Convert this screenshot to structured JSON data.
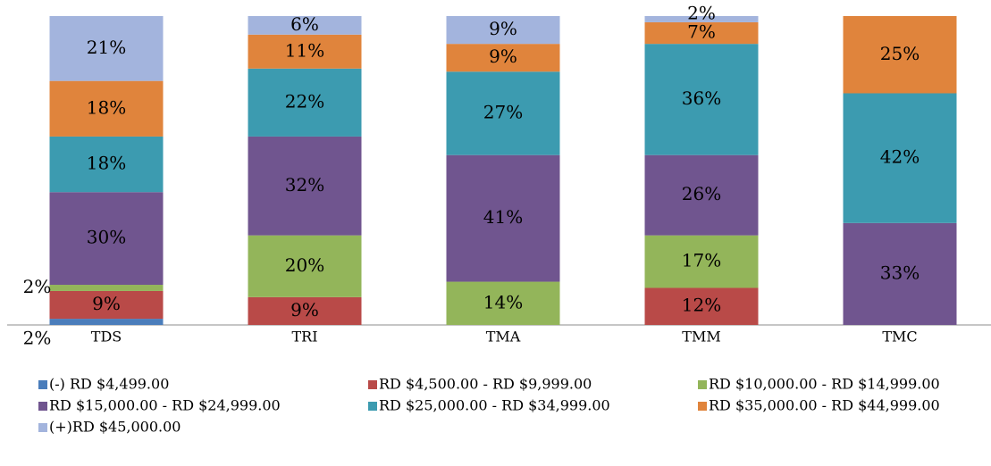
{
  "chart_data": {
    "type": "stacked_bar",
    "categories": [
      "TDS",
      "TRI",
      "TMA",
      "TMM",
      "TMC"
    ],
    "series": [
      {
        "name": "(-) RD $4,499.00",
        "color": "#4a7dbb",
        "values": [
          2,
          null,
          null,
          null,
          null
        ],
        "value_labels": [
          "2%",
          null,
          null,
          null,
          null
        ]
      },
      {
        "name": "RD $4,500.00 - RD $9,999.00",
        "color": "#b94a48",
        "values": [
          9,
          9,
          null,
          12,
          null
        ],
        "value_labels": [
          "9%",
          "9%",
          null,
          "12%",
          null
        ]
      },
      {
        "name": "RD $10,000.00 - RD $14,999.00",
        "color": "#93b55a",
        "values": [
          2,
          20,
          14,
          17,
          null
        ],
        "value_labels": [
          "2%",
          "20%",
          "14%",
          "17%",
          null
        ]
      },
      {
        "name": "RD $15,000.00 - RD $24,999.00",
        "color": "#70558f",
        "values": [
          30,
          32,
          41,
          26,
          33
        ],
        "value_labels": [
          "30%",
          "32%",
          "41%",
          "26%",
          "33%"
        ]
      },
      {
        "name": "RD $25,000.00 - RD $34,999.00",
        "color": "#3c9bb0",
        "values": [
          18,
          22,
          27,
          36,
          42
        ],
        "value_labels": [
          "18%",
          "22%",
          "27%",
          "36%",
          "42%"
        ]
      },
      {
        "name": "RD $35,000.00 - RD $44,999.00",
        "color": "#e0843c",
        "values": [
          18,
          11,
          9,
          7,
          25
        ],
        "value_labels": [
          "18%",
          "11%",
          "9%",
          "7%",
          "25%"
        ]
      },
      {
        "name": "(+)RD $45,000.00",
        "color": "#a3b4dd",
        "values": [
          21,
          6,
          9,
          2,
          null
        ],
        "value_labels": [
          "21%",
          "6%",
          "9%",
          "2%",
          null
        ]
      }
    ]
  }
}
